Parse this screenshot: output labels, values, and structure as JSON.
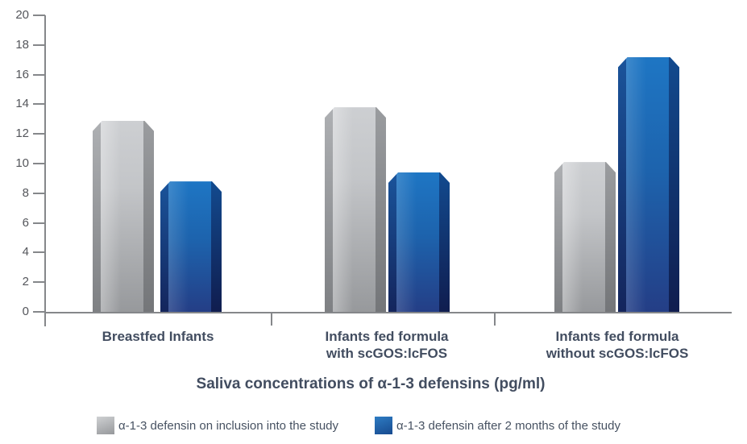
{
  "chart_data": {
    "type": "bar",
    "title": "Saliva concentrations of α-1-3 defensins (pg/ml)",
    "categories": [
      {
        "lines": [
          "Breastfed Infants"
        ]
      },
      {
        "lines": [
          "Infants fed formula",
          "with scGOS:lcFOS"
        ]
      },
      {
        "lines": [
          "Infants fed formula",
          "without scGOS:lcFOS"
        ]
      }
    ],
    "series": [
      {
        "name": "α-1-3 defensin on inclusion into the study",
        "values": [
          12.9,
          13.8,
          10.1
        ],
        "color_key": "gray",
        "color": "#a7a9ac"
      },
      {
        "name": "α-1-3 defensin after 2 months of the study",
        "values": [
          8.8,
          9.4,
          17.2
        ],
        "color_key": "blue",
        "color": "#1b6ab5"
      }
    ],
    "ylim": [
      0,
      20
    ],
    "ytick_step": 2,
    "yticks": [
      0,
      2,
      4,
      6,
      8,
      10,
      12,
      14,
      16,
      18,
      20
    ],
    "grid": false,
    "legend_position": "bottom",
    "colors": {
      "bar_gray": "#a7a9ac",
      "bar_blue": "#1b6ab5",
      "heading_text": "#424d60",
      "tick_text": "#54565b",
      "axis": "#85878a"
    }
  }
}
